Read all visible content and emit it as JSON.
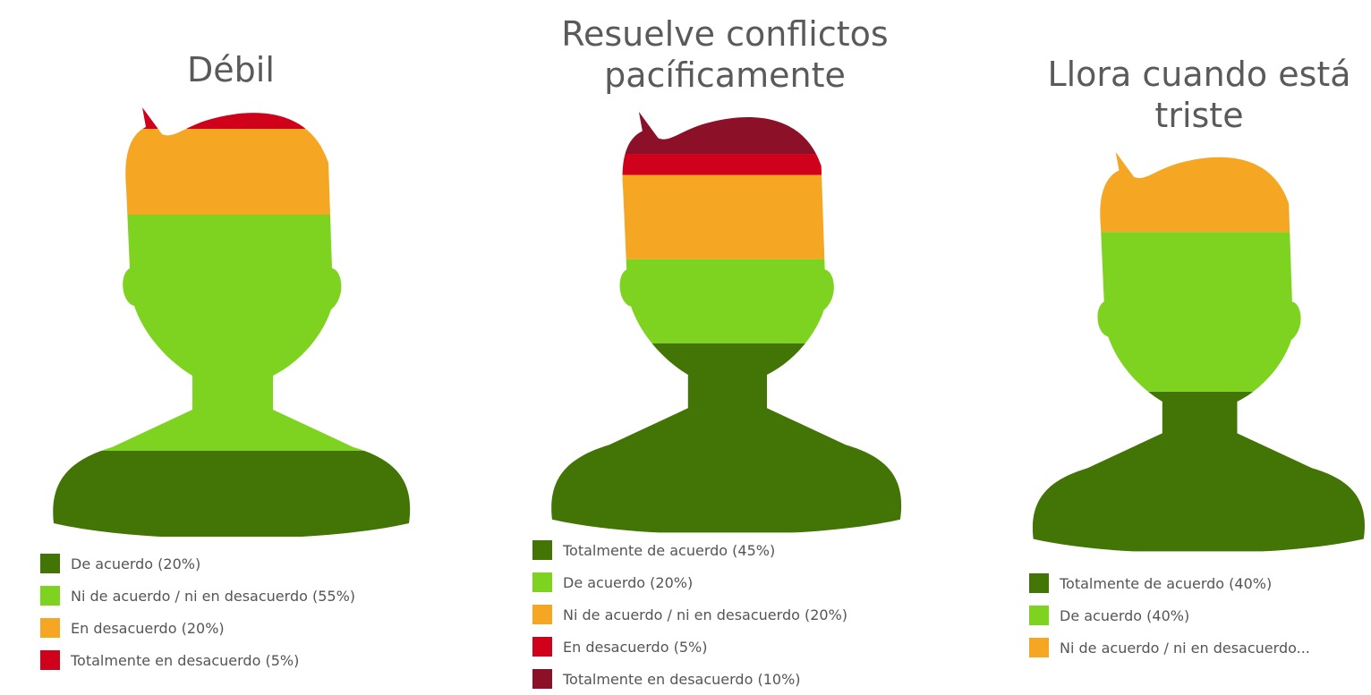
{
  "chart_data": [
    {
      "type": "pictorial-stack",
      "title": "Débil",
      "categories": [
        "De acuerdo (20%)",
        "Ni de acuerdo / ni en desacuerdo (55%)",
        "En desacuerdo (20%)",
        "Totalmente en desacuerdo (5%)"
      ],
      "values": [
        20,
        55,
        20,
        5
      ],
      "colors": [
        "#427505",
        "#7ed321",
        "#f5a623",
        "#d0021b"
      ]
    },
    {
      "type": "pictorial-stack",
      "title": "Resuelve conflictos pacíficamente",
      "categories": [
        "Totalmente de acuerdo (45%)",
        "De acuerdo (20%)",
        "Ni de acuerdo / ni en desacuerdo (20%)",
        "En desacuerdo (5%)",
        "Totalmente en desacuerdo (10%)"
      ],
      "values": [
        45,
        20,
        20,
        5,
        10
      ],
      "colors": [
        "#427505",
        "#7ed321",
        "#f5a623",
        "#d0021b",
        "#8b1028"
      ]
    },
    {
      "type": "pictorial-stack",
      "title": "Llora cuando está triste",
      "categories": [
        "Totalmente de acuerdo (40%)",
        "De acuerdo (40%)",
        "Ni de acuerdo / ni en desacuerdo..."
      ],
      "values": [
        40,
        40,
        20
      ],
      "colors": [
        "#427505",
        "#7ed321",
        "#f5a623"
      ]
    }
  ]
}
